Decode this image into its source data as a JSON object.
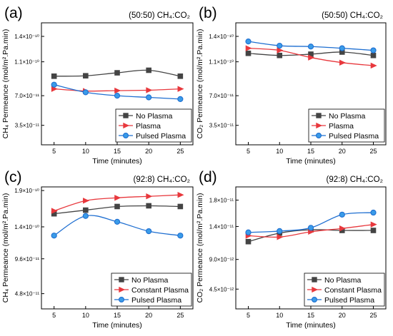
{
  "colors": {
    "no_plasma": "#444444",
    "plasma": "#e8383d",
    "pulsed": "#1f6fd1",
    "pulsed_marker": "#3a9be8"
  },
  "chart_data": [
    {
      "panel": "(a)",
      "type": "line",
      "condition": "(50:50) CH₄:CO₂",
      "ylabel": "CH₄ Permeance (mol/m².Pa.min)",
      "xlabel": "Time (minutes)",
      "x": [
        5,
        10,
        15,
        20,
        25
      ],
      "xlim": [
        3,
        27
      ],
      "xticks": [
        "5",
        "10",
        "15",
        "20",
        "25"
      ],
      "ylim": [
        1.2e-11,
        1.56e-10
      ],
      "yticks": [
        3.5e-11,
        7e-11,
        1.1e-10,
        1.4e-10
      ],
      "ytick_labels": [
        "3.5×10⁻¹¹",
        "7.0×10⁻¹¹",
        "1.1×10⁻¹⁰",
        "1.4×10⁻¹⁰"
      ],
      "legend": "bottom-right",
      "series": [
        {
          "name": "No Plasma",
          "marker": "square",
          "values": [
            9.3e-11,
            9.35e-11,
            9.7e-11,
            1e-10,
            9.3e-11
          ]
        },
        {
          "name": "Plasma",
          "marker": "triangle",
          "values": [
            7.8e-11,
            7.55e-11,
            7.6e-11,
            7.65e-11,
            7.8e-11
          ]
        },
        {
          "name": "Pulsed Plasma",
          "marker": "circle",
          "values": [
            8.3e-11,
            7.4e-11,
            7e-11,
            6.8e-11,
            6.6e-11
          ]
        }
      ]
    },
    {
      "panel": "(b)",
      "type": "line",
      "condition": "(50:50) CH₄:CO₂",
      "ylabel": "CO₂ Permeance (mol/m².Pa.min)",
      "xlabel": "Time (minutes)",
      "x": [
        5,
        10,
        15,
        20,
        25
      ],
      "xlim": [
        3,
        27
      ],
      "xticks": [
        "5",
        "10",
        "15",
        "20",
        "25"
      ],
      "ylim": [
        1.2e-11,
        1.56e-10
      ],
      "yticks": [
        3.5e-11,
        7e-11,
        1.1e-10,
        1.4e-10
      ],
      "ytick_labels": [
        "3.5×10⁻¹¹",
        "7.0×10⁻¹¹",
        "1.1×10⁻¹⁰",
        "1.4×10⁻¹⁰"
      ],
      "legend": "bottom-right",
      "series": [
        {
          "name": "No Plasma",
          "marker": "square",
          "values": [
            1.2e-10,
            1.175e-10,
            1.19e-10,
            1.215e-10,
            1.175e-10
          ]
        },
        {
          "name": "Plasma",
          "marker": "triangle",
          "values": [
            1.26e-10,
            1.235e-10,
            1.15e-10,
            1.09e-10,
            1.055e-10
          ]
        },
        {
          "name": "Pulsed Plasma",
          "marker": "circle",
          "values": [
            1.34e-10,
            1.29e-10,
            1.28e-10,
            1.26e-10,
            1.235e-10
          ]
        }
      ]
    },
    {
      "panel": "(c)",
      "type": "line",
      "condition": "(92:8) CH₄:CO₂",
      "ylabel": "CH₄ Permeance (mol/m².Pa.min)",
      "xlabel": "Time (minutes)",
      "x": [
        5,
        10,
        15,
        20,
        25
      ],
      "xlim": [
        3,
        27
      ],
      "xticks": [
        "5",
        "10",
        "15",
        "20",
        "25"
      ],
      "ylim": [
        2.7e-11,
        1.95e-10
      ],
      "yticks": [
        4.8e-11,
        9.6e-11,
        1.4e-10,
        1.9e-10
      ],
      "ytick_labels": [
        "4.8×10⁻¹¹",
        "9.6×10⁻¹¹",
        "1.4×10⁻¹⁰",
        "1.9×10⁻¹⁰"
      ],
      "legend": "bottom-right",
      "series": [
        {
          "name": "No Plasma",
          "marker": "square",
          "values": [
            1.58e-10,
            1.63e-10,
            1.68e-10,
            1.69e-10,
            1.68e-10
          ]
        },
        {
          "name": "Constant Plasma",
          "marker": "triangle",
          "values": [
            1.62e-10,
            1.76e-10,
            1.8e-10,
            1.82e-10,
            1.84e-10
          ]
        },
        {
          "name": "Pulsed Plasma",
          "marker": "circle",
          "values": [
            1.28e-10,
            1.55e-10,
            1.47e-10,
            1.34e-10,
            1.28e-10
          ]
        }
      ]
    },
    {
      "panel": "(d)",
      "type": "line",
      "condition": "(92:8) CH₄:CO₂",
      "ylabel": "CO₂ Permeance (mol/m².Pa.min)",
      "xlabel": "Time (minutes)",
      "x": [
        5,
        10,
        15,
        20,
        25
      ],
      "xlim": [
        3,
        27
      ],
      "xticks": [
        "5",
        "10",
        "15",
        "20",
        "25"
      ],
      "ylim": [
        1.5e-12,
        2e-11
      ],
      "yticks": [
        4.5e-12,
        9e-12,
        1.4e-11,
        1.8e-11
      ],
      "ytick_labels": [
        "4.5×10⁻¹²",
        "9.0×10⁻¹²",
        "1.4×10⁻¹¹",
        "1.8×10⁻¹¹"
      ],
      "legend": "bottom-right",
      "series": [
        {
          "name": "No Plasma",
          "marker": "square",
          "values": [
            1.17e-11,
            1.3e-11,
            1.35e-11,
            1.34e-11,
            1.34e-11
          ]
        },
        {
          "name": "Constant Plasma",
          "marker": "triangle",
          "values": [
            1.26e-11,
            1.24e-11,
            1.32e-11,
            1.37e-11,
            1.43e-11
          ]
        },
        {
          "name": "Pulsed Plasma",
          "marker": "circle",
          "values": [
            1.31e-11,
            1.33e-11,
            1.38e-11,
            1.58e-11,
            1.61e-11
          ]
        }
      ]
    }
  ]
}
